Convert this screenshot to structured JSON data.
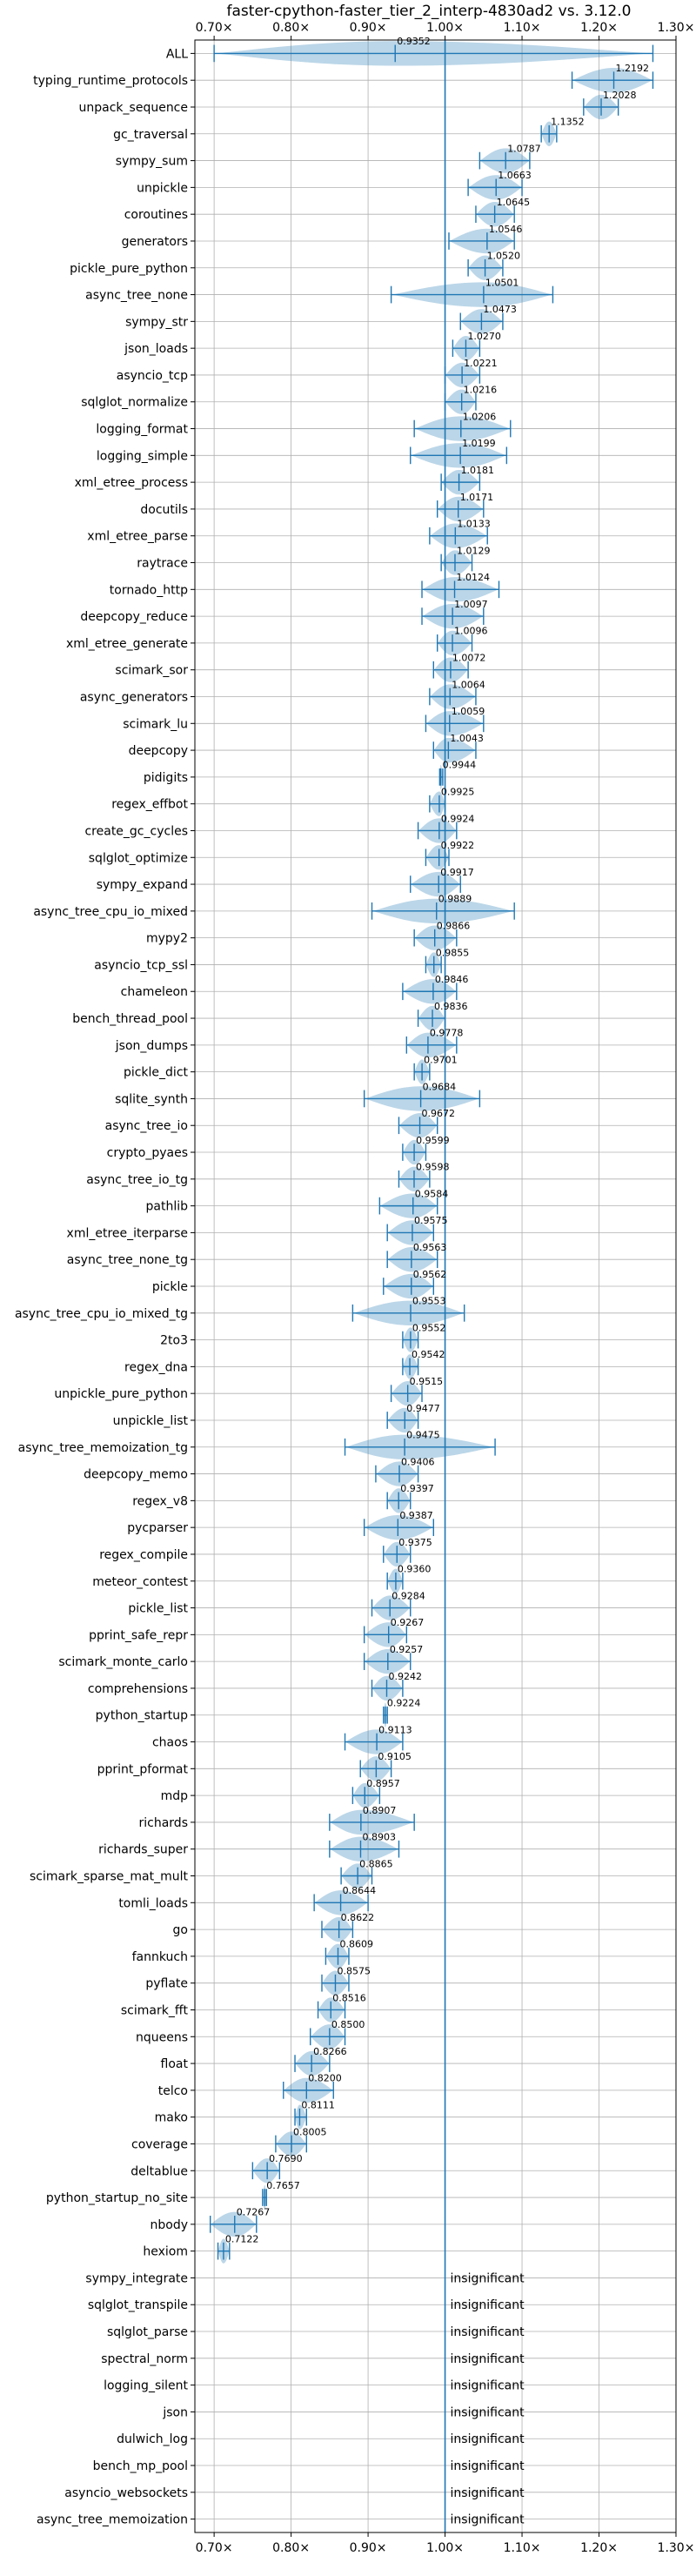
{
  "chart_data": {
    "type": "violin",
    "title": "faster-cpython-faster_tier_2_interp-4830ad2 vs. 3.12.0",
    "xlim": [
      0.675,
      1.3
    ],
    "xticks": [
      0.7,
      0.8,
      0.9,
      1.0,
      1.1,
      1.2,
      1.3
    ],
    "xtick_labels": [
      "0.70×",
      "0.80×",
      "0.90×",
      "1.00×",
      "1.10×",
      "1.20×",
      "1.30×"
    ],
    "reference_line": 1.0,
    "grid": true,
    "insignificant_label": "insignificant",
    "benchmarks": [
      {
        "name": "ALL",
        "value": 0.9352,
        "min": 0.7,
        "max": 1.27,
        "label": "0.9352"
      },
      {
        "name": "typing_runtime_protocols",
        "value": 1.2192,
        "min": 1.165,
        "max": 1.27,
        "label": "1.2192"
      },
      {
        "name": "unpack_sequence",
        "value": 1.2028,
        "min": 1.18,
        "max": 1.225,
        "label": "1.2028"
      },
      {
        "name": "gc_traversal",
        "value": 1.1352,
        "min": 1.125,
        "max": 1.145,
        "label": "1.1352"
      },
      {
        "name": "sympy_sum",
        "value": 1.0787,
        "min": 1.045,
        "max": 1.11,
        "label": "1.0787"
      },
      {
        "name": "unpickle",
        "value": 1.0663,
        "min": 1.03,
        "max": 1.1,
        "label": "1.0663"
      },
      {
        "name": "coroutines",
        "value": 1.0645,
        "min": 1.04,
        "max": 1.09,
        "label": "1.0645"
      },
      {
        "name": "generators",
        "value": 1.0546,
        "min": 1.005,
        "max": 1.09,
        "label": "1.0546"
      },
      {
        "name": "pickle_pure_python",
        "value": 1.052,
        "min": 1.03,
        "max": 1.075,
        "label": "1.0520"
      },
      {
        "name": "async_tree_none",
        "value": 1.0501,
        "min": 0.93,
        "max": 1.14,
        "label": "1.0501"
      },
      {
        "name": "sympy_str",
        "value": 1.0473,
        "min": 1.02,
        "max": 1.075,
        "label": "1.0473"
      },
      {
        "name": "json_loads",
        "value": 1.027,
        "min": 1.01,
        "max": 1.045,
        "label": "1.0270"
      },
      {
        "name": "asyncio_tcp",
        "value": 1.0221,
        "min": 1.0,
        "max": 1.045,
        "label": "1.0221"
      },
      {
        "name": "sqlglot_normalize",
        "value": 1.0216,
        "min": 1.0,
        "max": 1.04,
        "label": "1.0216"
      },
      {
        "name": "logging_format",
        "value": 1.0206,
        "min": 0.96,
        "max": 1.085,
        "label": "1.0206"
      },
      {
        "name": "logging_simple",
        "value": 1.0199,
        "min": 0.955,
        "max": 1.08,
        "label": "1.0199"
      },
      {
        "name": "xml_etree_process",
        "value": 1.0181,
        "min": 0.995,
        "max": 1.045,
        "label": "1.0181"
      },
      {
        "name": "docutils",
        "value": 1.0171,
        "min": 0.99,
        "max": 1.05,
        "label": "1.0171"
      },
      {
        "name": "xml_etree_parse",
        "value": 1.0133,
        "min": 0.98,
        "max": 1.055,
        "label": "1.0133"
      },
      {
        "name": "raytrace",
        "value": 1.0129,
        "min": 0.995,
        "max": 1.035,
        "label": "1.0129"
      },
      {
        "name": "tornado_http",
        "value": 1.0124,
        "min": 0.97,
        "max": 1.07,
        "label": "1.0124"
      },
      {
        "name": "deepcopy_reduce",
        "value": 1.0097,
        "min": 0.97,
        "max": 1.05,
        "label": "1.0097"
      },
      {
        "name": "xml_etree_generate",
        "value": 1.0096,
        "min": 0.99,
        "max": 1.035,
        "label": "1.0096"
      },
      {
        "name": "scimark_sor",
        "value": 1.0072,
        "min": 0.985,
        "max": 1.03,
        "label": "1.0072"
      },
      {
        "name": "async_generators",
        "value": 1.0064,
        "min": 0.98,
        "max": 1.04,
        "label": "1.0064"
      },
      {
        "name": "scimark_lu",
        "value": 1.0059,
        "min": 0.975,
        "max": 1.05,
        "label": "1.0059"
      },
      {
        "name": "deepcopy",
        "value": 1.0043,
        "min": 0.985,
        "max": 1.04,
        "label": "1.0043"
      },
      {
        "name": "pidigits",
        "value": 0.9944,
        "min": 0.993,
        "max": 0.997,
        "label": "0.9944"
      },
      {
        "name": "regex_effbot",
        "value": 0.9925,
        "min": 0.98,
        "max": 1.0,
        "label": "0.9925"
      },
      {
        "name": "create_gc_cycles",
        "value": 0.9924,
        "min": 0.965,
        "max": 1.015,
        "label": "0.9924"
      },
      {
        "name": "sqlglot_optimize",
        "value": 0.9922,
        "min": 0.975,
        "max": 1.005,
        "label": "0.9922"
      },
      {
        "name": "sympy_expand",
        "value": 0.9917,
        "min": 0.955,
        "max": 1.02,
        "label": "0.9917"
      },
      {
        "name": "async_tree_cpu_io_mixed",
        "value": 0.9889,
        "min": 0.905,
        "max": 1.09,
        "label": "0.9889"
      },
      {
        "name": "mypy2",
        "value": 0.9866,
        "min": 0.96,
        "max": 1.015,
        "label": "0.9866"
      },
      {
        "name": "asyncio_tcp_ssl",
        "value": 0.9855,
        "min": 0.975,
        "max": 0.995,
        "label": "0.9855"
      },
      {
        "name": "chameleon",
        "value": 0.9846,
        "min": 0.945,
        "max": 1.015,
        "label": "0.9846"
      },
      {
        "name": "bench_thread_pool",
        "value": 0.9836,
        "min": 0.965,
        "max": 1.0,
        "label": "0.9836"
      },
      {
        "name": "json_dumps",
        "value": 0.9778,
        "min": 0.95,
        "max": 1.015,
        "label": "0.9778"
      },
      {
        "name": "pickle_dict",
        "value": 0.9701,
        "min": 0.96,
        "max": 0.98,
        "label": "0.9701"
      },
      {
        "name": "sqlite_synth",
        "value": 0.9684,
        "min": 0.895,
        "max": 1.045,
        "label": "0.9684"
      },
      {
        "name": "async_tree_io",
        "value": 0.9672,
        "min": 0.94,
        "max": 0.99,
        "label": "0.9672"
      },
      {
        "name": "crypto_pyaes",
        "value": 0.9599,
        "min": 0.945,
        "max": 0.975,
        "label": "0.9599"
      },
      {
        "name": "async_tree_io_tg",
        "value": 0.9598,
        "min": 0.94,
        "max": 0.98,
        "label": "0.9598"
      },
      {
        "name": "pathlib",
        "value": 0.9584,
        "min": 0.915,
        "max": 0.99,
        "label": "0.9584"
      },
      {
        "name": "xml_etree_iterparse",
        "value": 0.9575,
        "min": 0.925,
        "max": 0.985,
        "label": "0.9575"
      },
      {
        "name": "async_tree_none_tg",
        "value": 0.9563,
        "min": 0.925,
        "max": 0.99,
        "label": "0.9563"
      },
      {
        "name": "pickle",
        "value": 0.9562,
        "min": 0.92,
        "max": 0.985,
        "label": "0.9562"
      },
      {
        "name": "async_tree_cpu_io_mixed_tg",
        "value": 0.9553,
        "min": 0.88,
        "max": 1.025,
        "label": "0.9553"
      },
      {
        "name": "2to3",
        "value": 0.9552,
        "min": 0.945,
        "max": 0.965,
        "label": "0.9552"
      },
      {
        "name": "regex_dna",
        "value": 0.9542,
        "min": 0.945,
        "max": 0.965,
        "label": "0.9542"
      },
      {
        "name": "unpickle_pure_python",
        "value": 0.9515,
        "min": 0.93,
        "max": 0.97,
        "label": "0.9515"
      },
      {
        "name": "unpickle_list",
        "value": 0.9477,
        "min": 0.925,
        "max": 0.965,
        "label": "0.9477"
      },
      {
        "name": "async_tree_memoization_tg",
        "value": 0.9475,
        "min": 0.87,
        "max": 1.065,
        "label": "0.9475"
      },
      {
        "name": "deepcopy_memo",
        "value": 0.9406,
        "min": 0.91,
        "max": 0.965,
        "label": "0.9406"
      },
      {
        "name": "regex_v8",
        "value": 0.9397,
        "min": 0.925,
        "max": 0.955,
        "label": "0.9397"
      },
      {
        "name": "pycparser",
        "value": 0.9387,
        "min": 0.895,
        "max": 0.985,
        "label": "0.9387"
      },
      {
        "name": "regex_compile",
        "value": 0.9375,
        "min": 0.92,
        "max": 0.955,
        "label": "0.9375"
      },
      {
        "name": "meteor_contest",
        "value": 0.936,
        "min": 0.925,
        "max": 0.945,
        "label": "0.9360"
      },
      {
        "name": "pickle_list",
        "value": 0.9284,
        "min": 0.905,
        "max": 0.955,
        "label": "0.9284"
      },
      {
        "name": "pprint_safe_repr",
        "value": 0.9267,
        "min": 0.895,
        "max": 0.95,
        "label": "0.9267"
      },
      {
        "name": "scimark_monte_carlo",
        "value": 0.9257,
        "min": 0.895,
        "max": 0.955,
        "label": "0.9257"
      },
      {
        "name": "comprehensions",
        "value": 0.9242,
        "min": 0.905,
        "max": 0.945,
        "label": "0.9242"
      },
      {
        "name": "python_startup",
        "value": 0.9224,
        "min": 0.92,
        "max": 0.925,
        "label": "0.9224"
      },
      {
        "name": "chaos",
        "value": 0.9113,
        "min": 0.87,
        "max": 0.945,
        "label": "0.9113"
      },
      {
        "name": "pprint_pformat",
        "value": 0.9105,
        "min": 0.89,
        "max": 0.93,
        "label": "0.9105"
      },
      {
        "name": "mdp",
        "value": 0.8957,
        "min": 0.88,
        "max": 0.915,
        "label": "0.8957"
      },
      {
        "name": "richards",
        "value": 0.8907,
        "min": 0.85,
        "max": 0.96,
        "label": "0.8907"
      },
      {
        "name": "richards_super",
        "value": 0.8903,
        "min": 0.85,
        "max": 0.94,
        "label": "0.8903"
      },
      {
        "name": "scimark_sparse_mat_mult",
        "value": 0.8865,
        "min": 0.865,
        "max": 0.905,
        "label": "0.8865"
      },
      {
        "name": "tomli_loads",
        "value": 0.8644,
        "min": 0.83,
        "max": 0.9,
        "label": "0.8644"
      },
      {
        "name": "go",
        "value": 0.8622,
        "min": 0.84,
        "max": 0.88,
        "label": "0.8622"
      },
      {
        "name": "fannkuch",
        "value": 0.8609,
        "min": 0.845,
        "max": 0.875,
        "label": "0.8609"
      },
      {
        "name": "pyflate",
        "value": 0.8575,
        "min": 0.84,
        "max": 0.875,
        "label": "0.8575"
      },
      {
        "name": "scimark_fft",
        "value": 0.8516,
        "min": 0.835,
        "max": 0.87,
        "label": "0.8516"
      },
      {
        "name": "nqueens",
        "value": 0.85,
        "min": 0.825,
        "max": 0.87,
        "label": "0.8500"
      },
      {
        "name": "float",
        "value": 0.8266,
        "min": 0.805,
        "max": 0.85,
        "label": "0.8266"
      },
      {
        "name": "telco",
        "value": 0.82,
        "min": 0.79,
        "max": 0.855,
        "label": "0.8200"
      },
      {
        "name": "mako",
        "value": 0.8111,
        "min": 0.805,
        "max": 0.82,
        "label": "0.8111"
      },
      {
        "name": "coverage",
        "value": 0.8005,
        "min": 0.78,
        "max": 0.82,
        "label": "0.8005"
      },
      {
        "name": "deltablue",
        "value": 0.769,
        "min": 0.75,
        "max": 0.785,
        "label": "0.7690"
      },
      {
        "name": "python_startup_no_site",
        "value": 0.7657,
        "min": 0.763,
        "max": 0.768,
        "label": "0.7657"
      },
      {
        "name": "nbody",
        "value": 0.7267,
        "min": 0.695,
        "max": 0.755,
        "label": "0.7267"
      },
      {
        "name": "hexiom",
        "value": 0.7122,
        "min": 0.705,
        "max": 0.72,
        "label": "0.7122"
      },
      {
        "name": "sympy_integrate",
        "insignificant": true
      },
      {
        "name": "sqlglot_transpile",
        "insignificant": true
      },
      {
        "name": "sqlglot_parse",
        "insignificant": true
      },
      {
        "name": "spectral_norm",
        "insignificant": true
      },
      {
        "name": "logging_silent",
        "insignificant": true
      },
      {
        "name": "json",
        "insignificant": true
      },
      {
        "name": "dulwich_log",
        "insignificant": true
      },
      {
        "name": "bench_mp_pool",
        "insignificant": true
      },
      {
        "name": "asyncio_websockets",
        "insignificant": true
      },
      {
        "name": "async_tree_memoization",
        "insignificant": true
      }
    ]
  }
}
